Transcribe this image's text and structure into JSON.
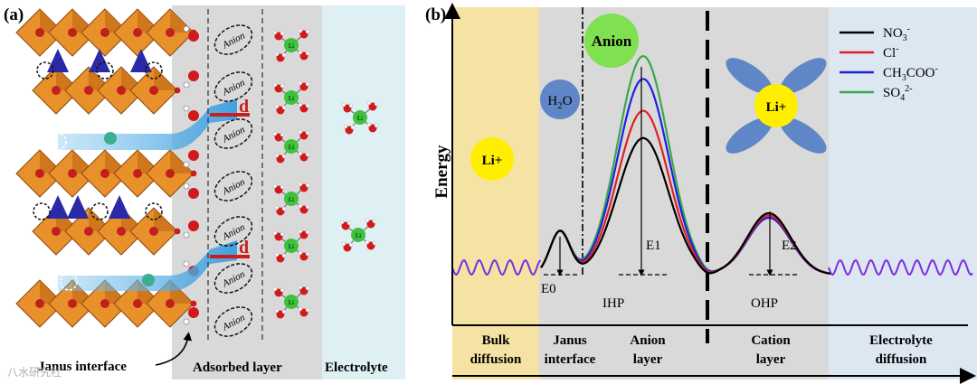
{
  "panel_a": {
    "label": "(a)",
    "anion_label": "Anion",
    "li_label": "Li",
    "d_label": "d",
    "janus_label": "Janus interface",
    "adsorbed_label": "Adsorbed layer",
    "electrolyte_label": "Electrolyte",
    "watermark": "八水研究社"
  },
  "panel_b": {
    "label": "(b)",
    "y_axis_label": "Energy",
    "bubbles": {
      "anion": "Anion",
      "water": "H2O",
      "li_left": "Li+",
      "li_right": "Li+"
    },
    "levels": {
      "e0": "E0",
      "e1": "E1",
      "e2": "E2",
      "ihp": "IHP",
      "ohp": "OHP"
    },
    "regions": [
      {
        "line1": "Bulk",
        "line2": "diffusion"
      },
      {
        "line1": "Janus",
        "line2": "interface"
      },
      {
        "line1": "Anion",
        "line2": "layer"
      },
      {
        "line1": "Cation",
        "line2": "layer"
      },
      {
        "line1": "Electrolyte",
        "line2": "diffusion"
      }
    ],
    "legend": [
      {
        "name": "NO3-",
        "base": "NO",
        "sub": "3",
        "sup": "-",
        "color": "#000000"
      },
      {
        "name": "Cl-",
        "base": "Cl",
        "sub": "",
        "sup": "-",
        "color": "#e02020"
      },
      {
        "name": "CH3COO-",
        "base": "CH",
        "sub": "3",
        "rest": "COO",
        "sup": "-",
        "color": "#2020e0"
      },
      {
        "name": "SO4 2-",
        "base": "SO",
        "sub": "4",
        "sup": "2-",
        "color": "#3aa84a"
      }
    ],
    "colors": {
      "bulk": "#f5e3a3",
      "middle": "#d9d9d9",
      "electrolyte": "#dce7f2",
      "wave": "#7a2ee0"
    }
  },
  "chart_data": {
    "type": "line",
    "title": "",
    "xlabel": "",
    "ylabel": "Energy",
    "categories": [
      "Bulk diffusion",
      "Janus interface",
      "Anion layer",
      "Cation layer",
      "Electrolyte diffusion"
    ],
    "series": [
      {
        "name": "NO3-",
        "barrier_E1": 0.6,
        "barrier_E2": 0.27,
        "barrier_E0": 0.19
      },
      {
        "name": "Cl-",
        "barrier_E1": 0.72,
        "barrier_E2": 0.26,
        "barrier_E0": 0.19
      },
      {
        "name": "CH3COO-",
        "barrier_E1": 0.86,
        "barrier_E2": 0.25,
        "barrier_E0": 0.19
      },
      {
        "name": "SO4 2-",
        "barrier_E1": 0.96,
        "barrier_E2": 0.25,
        "barrier_E0": 0.19
      }
    ],
    "ylim": [
      0,
      1
    ]
  }
}
